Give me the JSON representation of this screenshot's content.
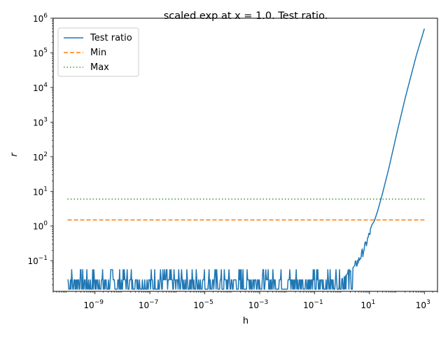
{
  "chart_data": {
    "type": "line",
    "title": "scaled exp at x = 1.0. Test ratio.",
    "xlabel": "h",
    "ylabel": "r",
    "xscale": "log",
    "yscale": "log",
    "xlim": [
      3e-11,
      3000
    ],
    "ylim": [
      0.013,
      1000000
    ],
    "xticks": [
      {
        "value": 1e-09,
        "base": "10",
        "exp": "−9"
      },
      {
        "value": 1e-07,
        "base": "10",
        "exp": "−7"
      },
      {
        "value": 1e-05,
        "base": "10",
        "exp": "−5"
      },
      {
        "value": 0.001,
        "base": "10",
        "exp": "−3"
      },
      {
        "value": 0.1,
        "base": "10",
        "exp": "−1"
      },
      {
        "value": 10,
        "base": "10",
        "exp": "1"
      },
      {
        "value": 1000,
        "base": "10",
        "exp": "3"
      }
    ],
    "yticks": [
      {
        "value": 0.1,
        "base": "10",
        "exp": "−1"
      },
      {
        "value": 1,
        "base": "10",
        "exp": "0"
      },
      {
        "value": 10,
        "base": "10",
        "exp": "1"
      },
      {
        "value": 100,
        "base": "10",
        "exp": "2"
      },
      {
        "value": 1000,
        "base": "10",
        "exp": "3"
      },
      {
        "value": 10000,
        "base": "10",
        "exp": "4"
      },
      {
        "value": 100000,
        "base": "10",
        "exp": "5"
      },
      {
        "value": 1000000,
        "base": "10",
        "exp": "6"
      }
    ],
    "legend": {
      "placement": "upper-left"
    },
    "series": [
      {
        "name": "Test ratio",
        "style": "solid",
        "color": "#1f77b4",
        "x": [
          1e-10,
          1e-09,
          1e-08,
          1e-07,
          1e-06,
          1e-05,
          0.0001,
          0.001,
          0.01,
          0.1,
          0.5,
          1,
          2,
          4,
          6,
          8,
          10,
          15,
          20,
          30,
          50,
          100,
          200,
          500,
          1000
        ],
        "y": [
          0.028,
          0.028,
          0.028,
          0.028,
          0.028,
          0.028,
          0.028,
          0.028,
          0.028,
          0.028,
          0.028,
          0.03,
          0.05,
          0.1,
          0.2,
          0.35,
          0.6,
          1.4,
          2.8,
          9,
          45,
          500,
          5000,
          80000,
          500000
        ],
        "noise_band": [
          0.015,
          0.055
        ]
      },
      {
        "name": "Min",
        "style": "dashed",
        "color": "#ff7f0e",
        "x": [
          1e-10,
          1000
        ],
        "y": [
          1.5,
          1.5
        ]
      },
      {
        "name": "Max",
        "style": "dotted",
        "color": "#2ca02c",
        "x": [
          1e-10,
          1000
        ],
        "y": [
          6,
          6
        ]
      }
    ]
  }
}
